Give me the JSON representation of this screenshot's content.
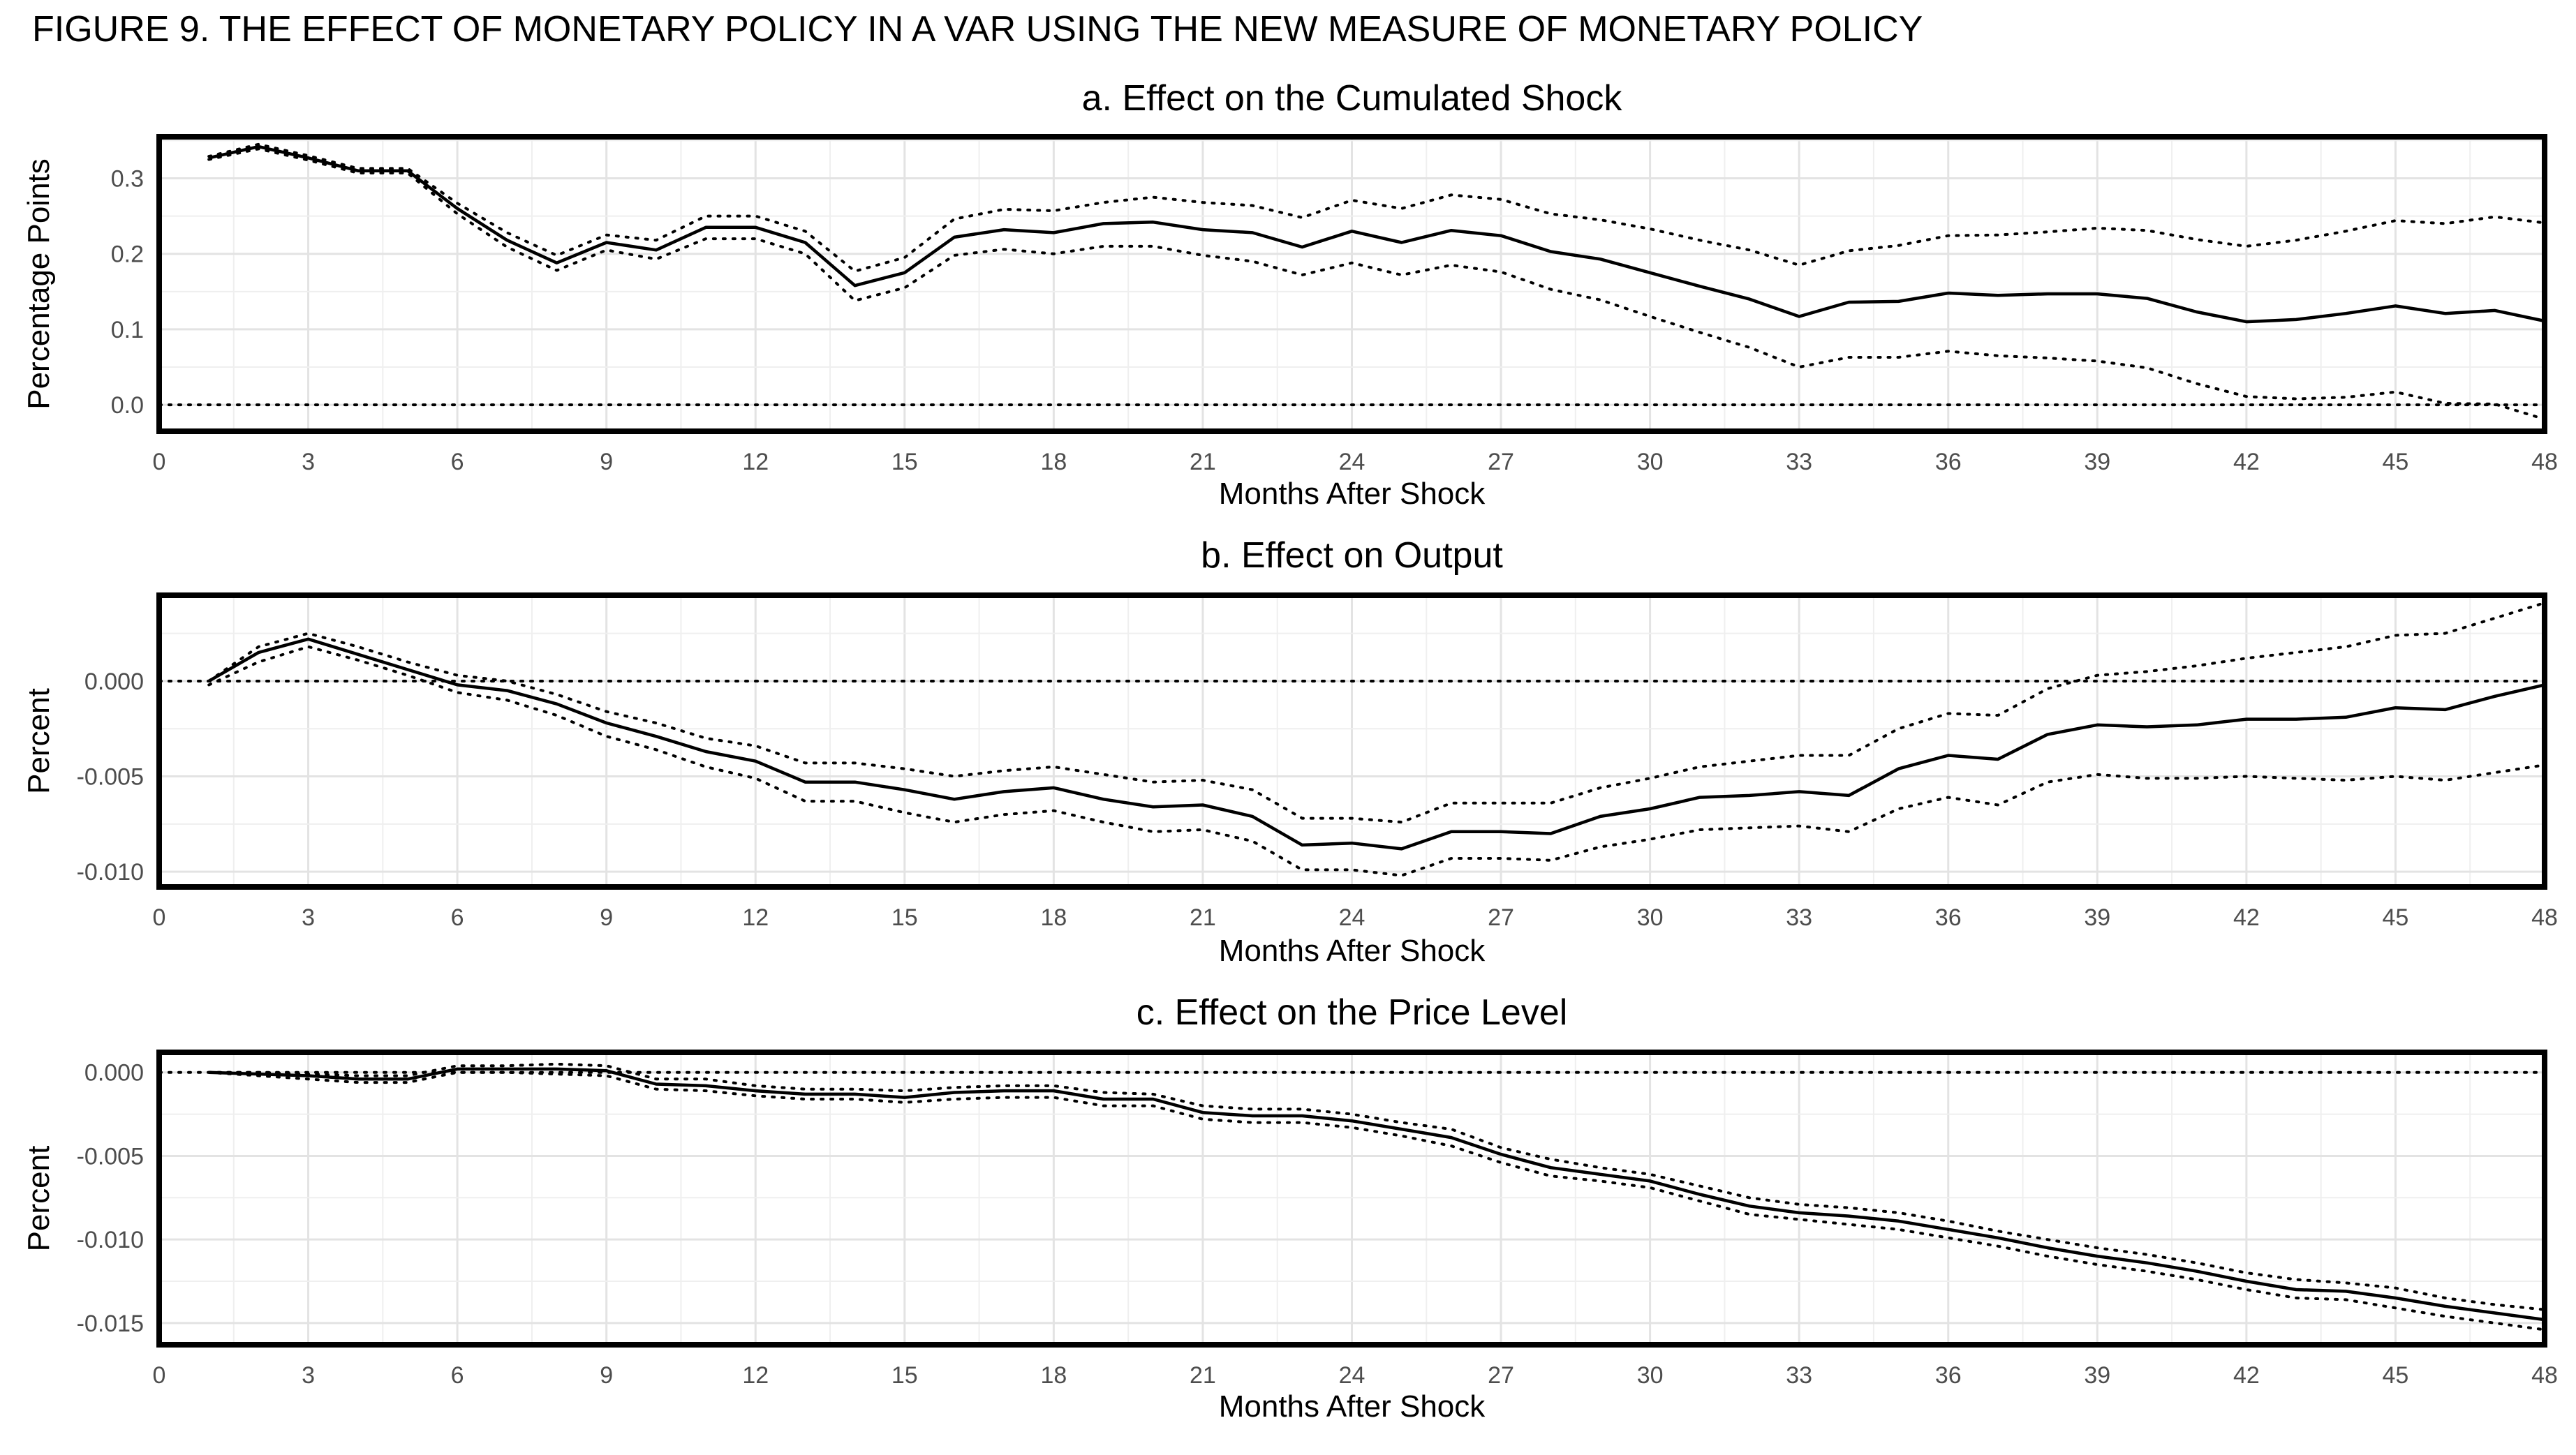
{
  "figure_title": "FIGURE 9. THE EFFECT OF MONETARY POLICY IN A VAR USING THE NEW MEASURE OF MONETARY POLICY",
  "chart_data": [
    {
      "type": "line",
      "title": "a. Effect on the Cumulated Shock",
      "xlabel": "Months After Shock",
      "ylabel": "Percentage Points",
      "xlim": [
        0,
        48
      ],
      "ylim": [
        -0.035,
        0.355
      ],
      "xticks": [
        0,
        3,
        6,
        9,
        12,
        15,
        18,
        21,
        24,
        27,
        30,
        33,
        36,
        39,
        42,
        45,
        48
      ],
      "yticks": [
        0.0,
        0.1,
        0.2,
        0.3
      ],
      "ytick_labels": [
        "0.0",
        "0.1",
        "0.2",
        "0.3"
      ],
      "zero_line": 0,
      "grid": true,
      "x": [
        1,
        2,
        3,
        4,
        5,
        6,
        7,
        8,
        9,
        10,
        11,
        12,
        13,
        14,
        15,
        16,
        17,
        18,
        19,
        20,
        21,
        22,
        23,
        24,
        25,
        26,
        27,
        28,
        29,
        30,
        31,
        32,
        33,
        34,
        35,
        36,
        37,
        38,
        39,
        40,
        41,
        42,
        43,
        44,
        45,
        46,
        47,
        48
      ],
      "series": [
        {
          "style": "solid",
          "values": [
            0.327,
            0.342,
            0.327,
            0.31,
            0.31,
            0.26,
            0.218,
            0.188,
            0.215,
            0.205,
            0.235,
            0.235,
            0.215,
            0.158,
            0.175,
            0.222,
            0.232,
            0.228,
            0.24,
            0.242,
            0.232,
            0.228,
            0.209,
            0.23,
            0.215,
            0.231,
            0.224,
            0.203,
            0.193,
            0.175,
            0.157,
            0.14,
            0.117,
            0.136,
            0.137,
            0.148,
            0.145,
            0.147,
            0.147,
            0.141,
            0.123,
            0.11,
            0.113,
            0.121,
            0.131,
            0.121,
            0.125,
            0.111
          ]
        },
        {
          "style": "dotted",
          "values": [
            0.329,
            0.345,
            0.33,
            0.313,
            0.313,
            0.267,
            0.228,
            0.198,
            0.225,
            0.218,
            0.25,
            0.25,
            0.23,
            0.177,
            0.195,
            0.246,
            0.259,
            0.257,
            0.268,
            0.275,
            0.268,
            0.264,
            0.248,
            0.271,
            0.26,
            0.278,
            0.272,
            0.253,
            0.245,
            0.233,
            0.218,
            0.205,
            0.185,
            0.204,
            0.211,
            0.224,
            0.225,
            0.229,
            0.234,
            0.231,
            0.219,
            0.21,
            0.218,
            0.23,
            0.244,
            0.24,
            0.249,
            0.241
          ]
        },
        {
          "style": "dotted",
          "values": [
            0.325,
            0.339,
            0.324,
            0.307,
            0.307,
            0.253,
            0.209,
            0.178,
            0.205,
            0.193,
            0.22,
            0.22,
            0.2,
            0.138,
            0.155,
            0.198,
            0.206,
            0.2,
            0.21,
            0.21,
            0.198,
            0.19,
            0.172,
            0.188,
            0.172,
            0.185,
            0.176,
            0.153,
            0.139,
            0.117,
            0.096,
            0.076,
            0.05,
            0.063,
            0.063,
            0.071,
            0.065,
            0.062,
            0.058,
            0.049,
            0.028,
            0.011,
            0.008,
            0.01,
            0.017,
            0.002,
            0.001,
            -0.019
          ]
        }
      ]
    },
    {
      "type": "line",
      "title": "b. Effect on Output",
      "xlabel": "Months After Shock",
      "ylabel": "Percent",
      "xlim": [
        0,
        48
      ],
      "ylim": [
        -0.0108,
        0.0045
      ],
      "xticks": [
        0,
        3,
        6,
        9,
        12,
        15,
        18,
        21,
        24,
        27,
        30,
        33,
        36,
        39,
        42,
        45,
        48
      ],
      "yticks": [
        0.0,
        -0.005,
        -0.01
      ],
      "ytick_labels": [
        "0.000",
        "-0.005",
        "-0.010"
      ],
      "zero_line": 0,
      "grid": true,
      "x": [
        1,
        2,
        3,
        4,
        5,
        6,
        7,
        8,
        9,
        10,
        11,
        12,
        13,
        14,
        15,
        16,
        17,
        18,
        19,
        20,
        21,
        22,
        23,
        24,
        25,
        26,
        27,
        28,
        29,
        30,
        31,
        32,
        33,
        34,
        35,
        36,
        37,
        38,
        39,
        40,
        41,
        42,
        43,
        44,
        45,
        46,
        47,
        48
      ],
      "series": [
        {
          "style": "solid",
          "values": [
            0.0,
            0.0015,
            0.0022,
            0.0014,
            0.0006,
            -0.0002,
            -0.0005,
            -0.0012,
            -0.0022,
            -0.0029,
            -0.0037,
            -0.0042,
            -0.0053,
            -0.0053,
            -0.0057,
            -0.0062,
            -0.0058,
            -0.0056,
            -0.0062,
            -0.0066,
            -0.0065,
            -0.0071,
            -0.0086,
            -0.0085,
            -0.0088,
            -0.0079,
            -0.0079,
            -0.008,
            -0.0071,
            -0.0067,
            -0.0061,
            -0.006,
            -0.0058,
            -0.006,
            -0.0046,
            -0.0039,
            -0.0041,
            -0.0028,
            -0.0023,
            -0.0024,
            -0.0023,
            -0.002,
            -0.002,
            -0.0019,
            -0.0014,
            -0.0015,
            -0.0008,
            -0.0002
          ]
        },
        {
          "style": "dotted",
          "values": [
            0.0,
            0.0018,
            0.0025,
            0.0018,
            0.001,
            0.0003,
            0.0,
            -0.0007,
            -0.0016,
            -0.0022,
            -0.003,
            -0.0034,
            -0.0043,
            -0.0043,
            -0.0046,
            -0.005,
            -0.0047,
            -0.0045,
            -0.0049,
            -0.0053,
            -0.0052,
            -0.0057,
            -0.0072,
            -0.0072,
            -0.0074,
            -0.0064,
            -0.0064,
            -0.0064,
            -0.0056,
            -0.0051,
            -0.0045,
            -0.0042,
            -0.0039,
            -0.0039,
            -0.0025,
            -0.0017,
            -0.0018,
            -0.0004,
            0.0003,
            0.0005,
            0.0008,
            0.0012,
            0.0015,
            0.0018,
            0.0024,
            0.0025,
            0.0033,
            0.0041
          ]
        },
        {
          "style": "dotted",
          "values": [
            -0.0002,
            0.001,
            0.0018,
            0.0011,
            0.0003,
            -0.0006,
            -0.001,
            -0.0018,
            -0.0029,
            -0.0036,
            -0.0045,
            -0.0051,
            -0.0063,
            -0.0063,
            -0.0069,
            -0.0074,
            -0.007,
            -0.0068,
            -0.0074,
            -0.0079,
            -0.0078,
            -0.0084,
            -0.0099,
            -0.0099,
            -0.0102,
            -0.0093,
            -0.0093,
            -0.0094,
            -0.0087,
            -0.0083,
            -0.0078,
            -0.0077,
            -0.0076,
            -0.0079,
            -0.0067,
            -0.0061,
            -0.0065,
            -0.0053,
            -0.0049,
            -0.0051,
            -0.0051,
            -0.005,
            -0.0051,
            -0.0052,
            -0.005,
            -0.0052,
            -0.0048,
            -0.0044
          ]
        }
      ]
    },
    {
      "type": "line",
      "title": "c. Effect on the Price Level",
      "xlabel": "Months After Shock",
      "ylabel": "Percent",
      "xlim": [
        0,
        48
      ],
      "ylim": [
        -0.0163,
        0.0012
      ],
      "xticks": [
        0,
        3,
        6,
        9,
        12,
        15,
        18,
        21,
        24,
        27,
        30,
        33,
        36,
        39,
        42,
        45,
        48
      ],
      "yticks": [
        0.0,
        -0.005,
        -0.01,
        -0.015
      ],
      "ytick_labels": [
        "0.000",
        "-0.005",
        "-0.010",
        "-0.015"
      ],
      "zero_line": 0,
      "grid": true,
      "x": [
        1,
        2,
        3,
        4,
        5,
        6,
        7,
        8,
        9,
        10,
        11,
        12,
        13,
        14,
        15,
        16,
        17,
        18,
        19,
        20,
        21,
        22,
        23,
        24,
        25,
        26,
        27,
        28,
        29,
        30,
        31,
        32,
        33,
        34,
        35,
        36,
        37,
        38,
        39,
        40,
        41,
        42,
        43,
        44,
        45,
        46,
        47,
        48
      ],
      "series": [
        {
          "style": "solid",
          "values": [
            0.0,
            -0.0001,
            -0.0002,
            -0.0004,
            -0.0004,
            0.0002,
            0.0002,
            0.0002,
            0.0001,
            -0.0007,
            -0.0008,
            -0.0011,
            -0.0013,
            -0.0013,
            -0.0015,
            -0.0012,
            -0.0011,
            -0.0011,
            -0.0016,
            -0.0016,
            -0.0024,
            -0.0026,
            -0.0026,
            -0.0029,
            -0.0034,
            -0.0039,
            -0.0049,
            -0.0057,
            -0.0061,
            -0.0065,
            -0.0073,
            -0.008,
            -0.0084,
            -0.0086,
            -0.0089,
            -0.0094,
            -0.0099,
            -0.0105,
            -0.011,
            -0.0114,
            -0.0119,
            -0.0125,
            -0.013,
            -0.0131,
            -0.0135,
            -0.014,
            -0.0144,
            -0.0148
          ]
        },
        {
          "style": "dotted",
          "values": [
            0.0,
            0.0,
            -0.0001,
            -0.0002,
            -0.0002,
            0.0004,
            0.0004,
            0.0005,
            0.0004,
            -0.0004,
            -0.0004,
            -0.0008,
            -0.001,
            -0.001,
            -0.0011,
            -0.0009,
            -0.0008,
            -0.0008,
            -0.0012,
            -0.0013,
            -0.002,
            -0.0022,
            -0.0022,
            -0.0025,
            -0.003,
            -0.0034,
            -0.0045,
            -0.0052,
            -0.0057,
            -0.0061,
            -0.0068,
            -0.0075,
            -0.0079,
            -0.0081,
            -0.0084,
            -0.0089,
            -0.0095,
            -0.01,
            -0.0105,
            -0.0109,
            -0.0114,
            -0.012,
            -0.0124,
            -0.0126,
            -0.0129,
            -0.0135,
            -0.0139,
            -0.0142
          ]
        },
        {
          "style": "dotted",
          "values": [
            0.0,
            -0.0002,
            -0.0004,
            -0.0006,
            -0.0006,
            0.0,
            0.0,
            -0.0001,
            -0.0002,
            -0.001,
            -0.0011,
            -0.0014,
            -0.0016,
            -0.0016,
            -0.0018,
            -0.0016,
            -0.0015,
            -0.0015,
            -0.002,
            -0.002,
            -0.0028,
            -0.003,
            -0.003,
            -0.0033,
            -0.0038,
            -0.0044,
            -0.0054,
            -0.0062,
            -0.0065,
            -0.0069,
            -0.0077,
            -0.0085,
            -0.0088,
            -0.0091,
            -0.0094,
            -0.0099,
            -0.0104,
            -0.011,
            -0.0115,
            -0.0119,
            -0.0124,
            -0.013,
            -0.0135,
            -0.0136,
            -0.0141,
            -0.0146,
            -0.015,
            -0.0154
          ]
        }
      ]
    }
  ]
}
